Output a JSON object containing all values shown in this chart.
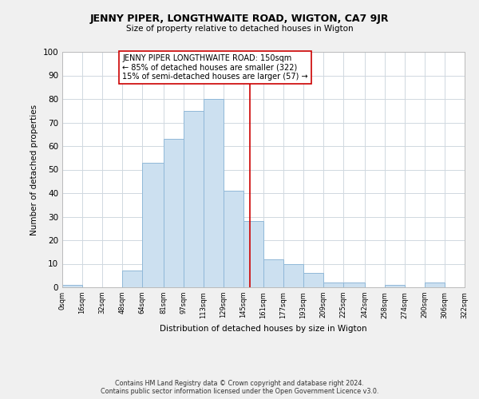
{
  "title": "JENNY PIPER, LONGTHWAITE ROAD, WIGTON, CA7 9JR",
  "subtitle": "Size of property relative to detached houses in Wigton",
  "xlabel": "Distribution of detached houses by size in Wigton",
  "ylabel": "Number of detached properties",
  "bar_color": "#cce0f0",
  "bar_edge_color": "#90b8d8",
  "bins": [
    0,
    16,
    32,
    48,
    64,
    81,
    97,
    113,
    129,
    145,
    161,
    177,
    193,
    209,
    225,
    242,
    258,
    274,
    290,
    306,
    322
  ],
  "counts": [
    1,
    0,
    0,
    7,
    53,
    63,
    75,
    80,
    41,
    28,
    12,
    10,
    6,
    2,
    2,
    0,
    1,
    0,
    2,
    0
  ],
  "tick_labels": [
    "0sqm",
    "16sqm",
    "32sqm",
    "48sqm",
    "64sqm",
    "81sqm",
    "97sqm",
    "113sqm",
    "129sqm",
    "145sqm",
    "161sqm",
    "177sqm",
    "193sqm",
    "209sqm",
    "225sqm",
    "242sqm",
    "258sqm",
    "274sqm",
    "290sqm",
    "306sqm",
    "322sqm"
  ],
  "property_line_x": 150,
  "property_line_color": "#cc0000",
  "annotation_line1": "JENNY PIPER LONGTHWAITE ROAD: 150sqm",
  "annotation_line2": "← 85% of detached houses are smaller (322)",
  "annotation_line3": "15% of semi-detached houses are larger (57) →",
  "annotation_box_color": "#ffffff",
  "annotation_box_edge": "#cc0000",
  "ylim": [
    0,
    100
  ],
  "yticks": [
    0,
    10,
    20,
    30,
    40,
    50,
    60,
    70,
    80,
    90,
    100
  ],
  "footer1": "Contains HM Land Registry data © Crown copyright and database right 2024.",
  "footer2": "Contains public sector information licensed under the Open Government Licence v3.0.",
  "bg_color": "#f0f0f0",
  "plot_bg_color": "#ffffff",
  "grid_color": "#d0d8e0"
}
